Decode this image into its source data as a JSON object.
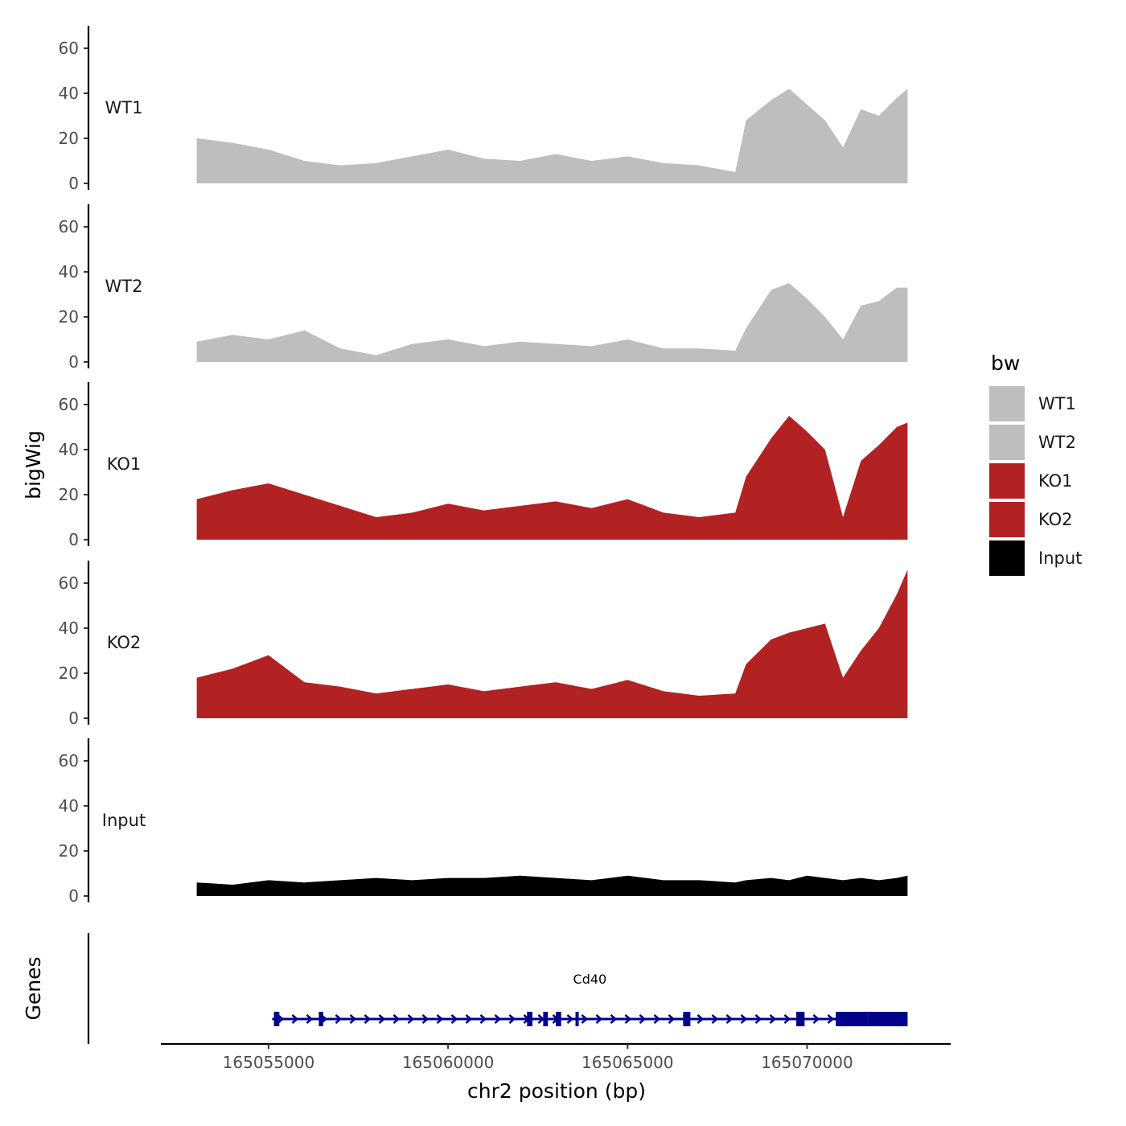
{
  "chart_data": {
    "type": "area",
    "title": "",
    "ylabel": "bigWig",
    "xlabel": "chr2 position (bp)",
    "xlim": [
      165052000,
      165074000
    ],
    "ylim": [
      0,
      70
    ],
    "yticks": [
      0,
      20,
      40,
      60
    ],
    "xticks": [
      165055000,
      165060000,
      165065000,
      165070000
    ],
    "xtick_labels": [
      "165055000",
      "165060000",
      "165065000",
      "165070000"
    ],
    "legend": {
      "title": "bw",
      "placement": "right",
      "entries": [
        {
          "label": "WT1",
          "color": "#BEBEBE"
        },
        {
          "label": "WT2",
          "color": "#BEBEBE"
        },
        {
          "label": "KO1",
          "color": "#B22222"
        },
        {
          "label": "KO2",
          "color": "#B22222"
        },
        {
          "label": "Input",
          "color": "#000000"
        }
      ]
    },
    "x": [
      165053000,
      165054000,
      165055000,
      165056000,
      165057000,
      165058000,
      165059000,
      165060000,
      165061000,
      165062000,
      165063000,
      165064000,
      165065000,
      165066000,
      165067000,
      165068000,
      165068300,
      165069000,
      165069500,
      165070000,
      165070500,
      165071000,
      165071500,
      165072000,
      165072500,
      165072800
    ],
    "series": [
      {
        "name": "WT1",
        "color": "#BEBEBE",
        "values": [
          20,
          18,
          15,
          10,
          8,
          9,
          12,
          15,
          11,
          10,
          13,
          10,
          12,
          9,
          8,
          5,
          28,
          37,
          42,
          35,
          28,
          16,
          33,
          30,
          38,
          42
        ]
      },
      {
        "name": "WT2",
        "color": "#BEBEBE",
        "values": [
          9,
          12,
          10,
          14,
          6,
          3,
          8,
          10,
          7,
          9,
          8,
          7,
          10,
          6,
          6,
          5,
          15,
          32,
          35,
          28,
          20,
          10,
          25,
          27,
          33,
          33
        ]
      },
      {
        "name": "KO1",
        "color": "#B22222",
        "values": [
          18,
          22,
          25,
          20,
          15,
          10,
          12,
          16,
          13,
          15,
          17,
          14,
          18,
          12,
          10,
          12,
          28,
          45,
          55,
          48,
          40,
          10,
          35,
          42,
          50,
          52
        ]
      },
      {
        "name": "KO2",
        "color": "#B22222",
        "values": [
          18,
          22,
          28,
          16,
          14,
          11,
          13,
          15,
          12,
          14,
          16,
          13,
          17,
          12,
          10,
          11,
          24,
          35,
          38,
          40,
          42,
          18,
          30,
          40,
          55,
          66
        ]
      },
      {
        "name": "Input",
        "color": "#000000",
        "values": [
          6,
          5,
          7,
          6,
          7,
          8,
          7,
          8,
          8,
          9,
          8,
          7,
          9,
          7,
          7,
          6,
          7,
          8,
          7,
          9,
          8,
          7,
          8,
          7,
          8,
          9
        ]
      }
    ],
    "genes": {
      "panel_label": "Genes",
      "items": [
        {
          "name": "Cd40",
          "strand": "+",
          "color": "#00008B",
          "start": 165055100,
          "end": 165072800,
          "exons": [
            [
              165055150,
              165055300
            ],
            [
              165056400,
              165056520
            ],
            [
              165062200,
              165062350
            ],
            [
              165062650,
              165062780
            ],
            [
              165063000,
              165063150
            ],
            [
              165063550,
              165063620
            ],
            [
              165066550,
              165066750
            ],
            [
              165069700,
              165069930
            ],
            [
              165070800,
              165071700
            ],
            [
              165071700,
              165072800
            ]
          ]
        }
      ]
    }
  }
}
